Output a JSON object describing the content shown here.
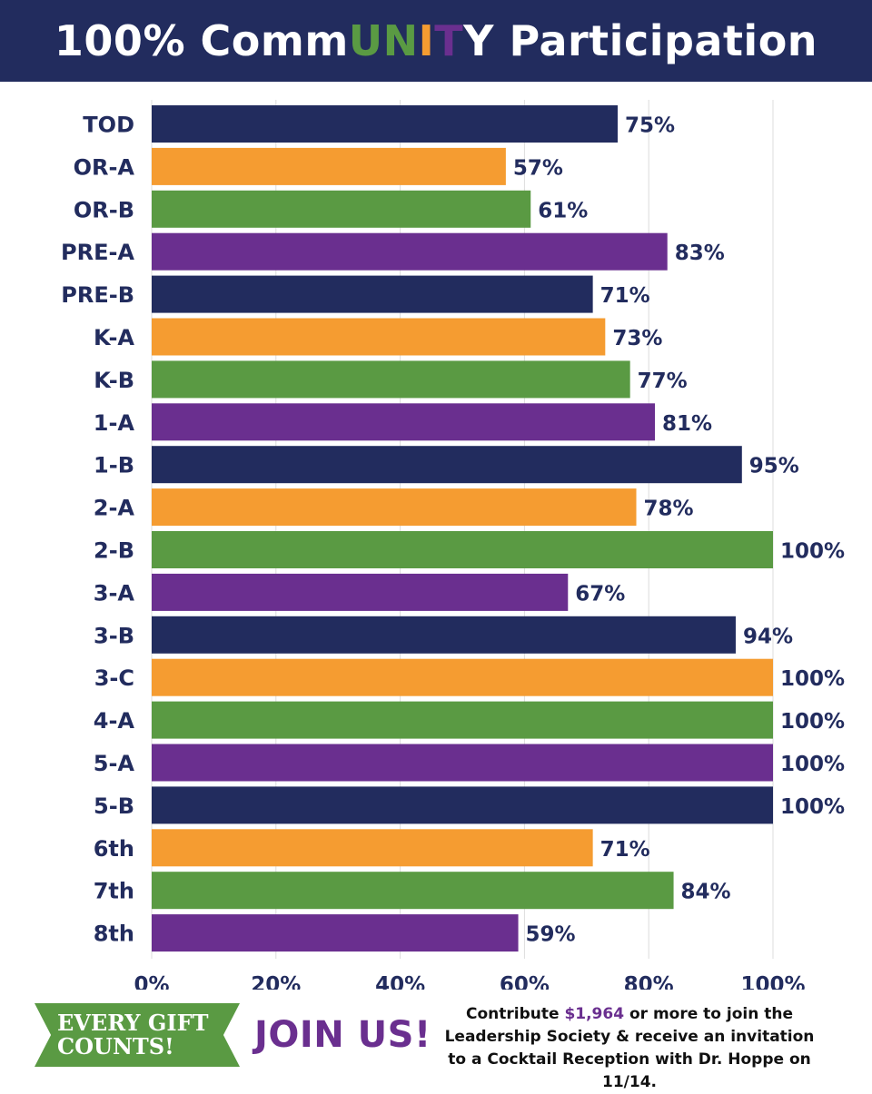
{
  "header": {
    "title_parts": [
      {
        "text": "100% Comm",
        "color": "#ffffff"
      },
      {
        "text": "U",
        "color": "#5a9a43"
      },
      {
        "text": "N",
        "color": "#5a9a43"
      },
      {
        "text": "I",
        "color": "#f59c31"
      },
      {
        "text": "T",
        "color": "#6a2f8f"
      },
      {
        "text": "Y Participation",
        "color": "#ffffff"
      }
    ]
  },
  "colors": {
    "navy": "#222c5e",
    "orange": "#f59c31",
    "green": "#5a9a43",
    "purple": "#6a2f8f"
  },
  "chart_data": {
    "type": "bar",
    "orientation": "horizontal",
    "title": "100% CommUNITY Participation",
    "categories": [
      "TOD",
      "OR-A",
      "OR-B",
      "PRE-A",
      "PRE-B",
      "K-A",
      "K-B",
      "1-A",
      "1-B",
      "2-A",
      "2-B",
      "3-A",
      "3-B",
      "3-C",
      "4-A",
      "5-A",
      "5-B",
      "6th",
      "7th",
      "8th"
    ],
    "values": [
      75,
      57,
      61,
      83,
      71,
      73,
      77,
      81,
      95,
      78,
      100,
      67,
      94,
      100,
      100,
      100,
      100,
      71,
      84,
      59
    ],
    "data_labels": [
      "75%",
      "57%",
      "61%",
      "83%",
      "71%",
      "73%",
      "77%",
      "81%",
      "95%",
      "78%",
      "100%",
      "67%",
      "94%",
      "100%",
      "100%",
      "100%",
      "100%",
      "71%",
      "84%",
      "59%"
    ],
    "bar_colors": [
      "#222c5e",
      "#f59c31",
      "#5a9a43",
      "#6a2f8f",
      "#222c5e",
      "#f59c31",
      "#5a9a43",
      "#6a2f8f",
      "#222c5e",
      "#f59c31",
      "#5a9a43",
      "#6a2f8f",
      "#222c5e",
      "#f59c31",
      "#5a9a43",
      "#6a2f8f",
      "#222c5e",
      "#f59c31",
      "#5a9a43",
      "#6a2f8f"
    ],
    "x_ticks": [
      0,
      20,
      40,
      60,
      80,
      100
    ],
    "x_tick_labels": [
      "0%",
      "20%",
      "40%",
      "60%",
      "80%",
      "100%"
    ],
    "xlim": [
      0,
      100
    ],
    "grid": true,
    "xlabel": "",
    "ylabel": ""
  },
  "footer": {
    "ribbon_text": "EVERY GIFT COUNTS!",
    "join_text": "JOIN US!",
    "promo_before": "Contribute ",
    "promo_amount": "$1,964",
    "promo_after": " or more to join the Leadership Society & receive an invitation to a Cocktail Reception with Dr. Hoppe on 11/14."
  }
}
